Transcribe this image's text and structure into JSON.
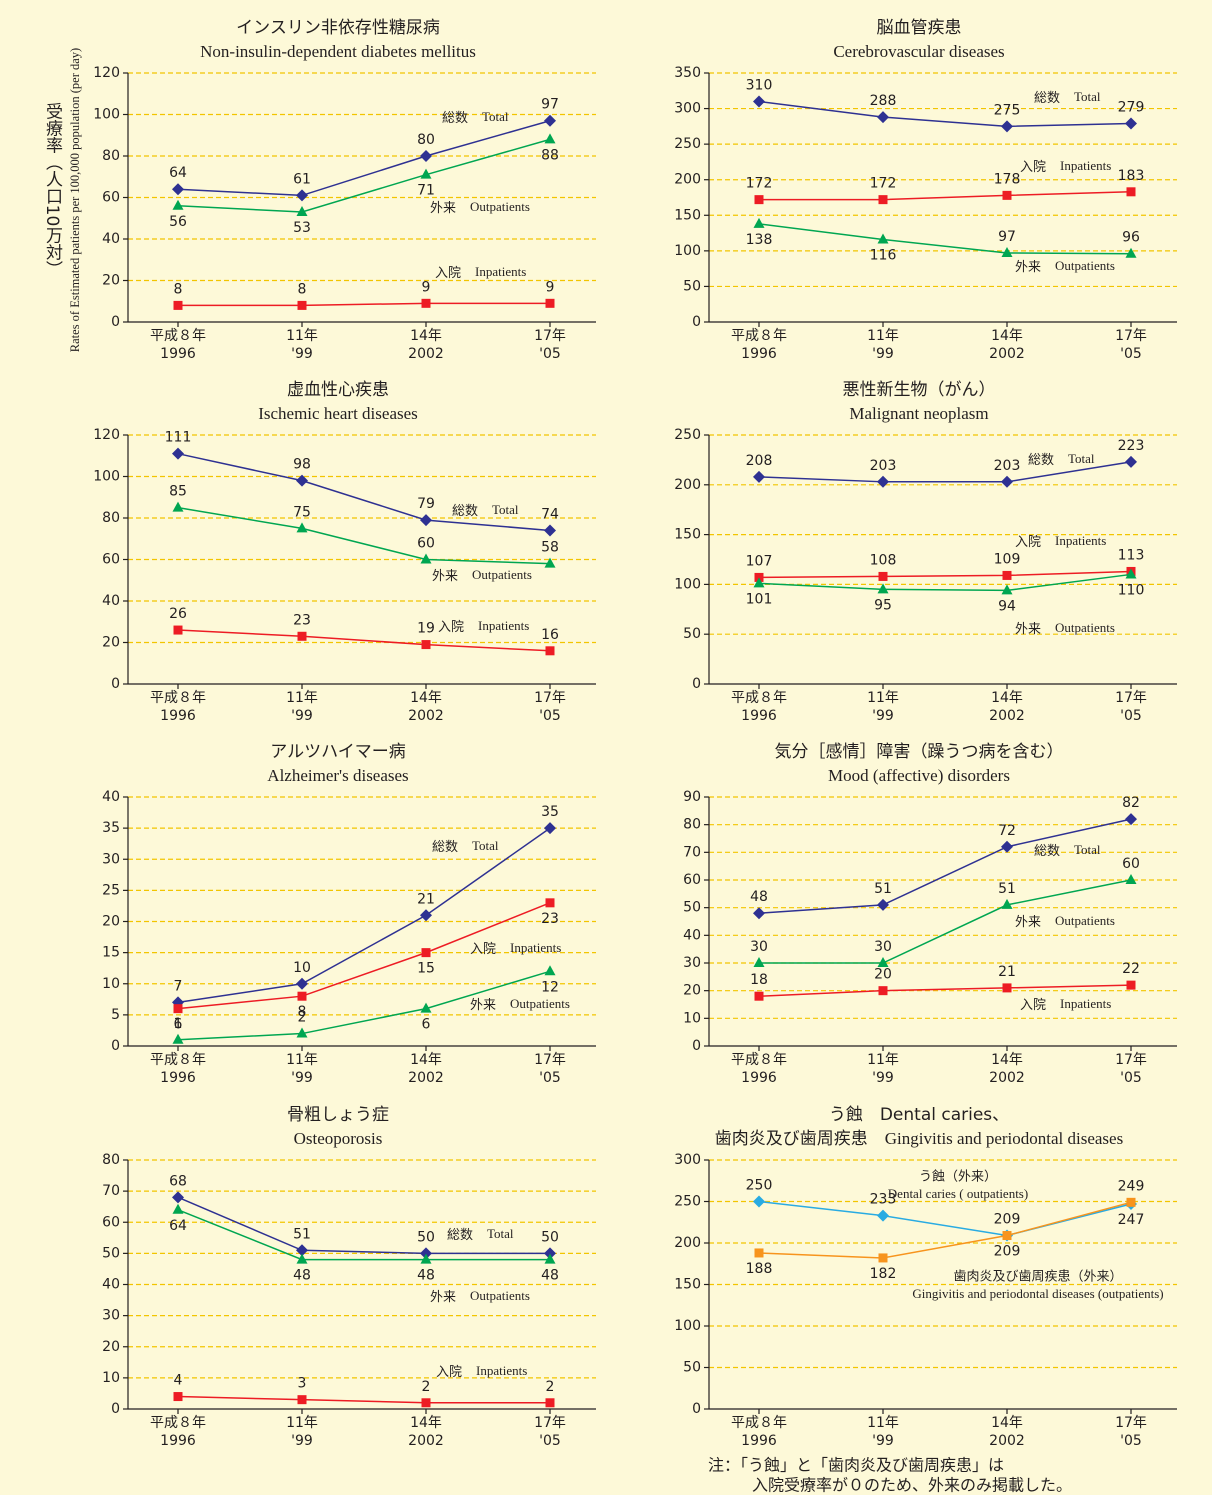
{
  "y_axis_title": "受療率（人口10万対）",
  "y_axis_title_en": "Rates of Estimated patients per 100,000 population (per day)",
  "note": [
    "注：「う蝕」と「歯肉炎及び歯周疾患」は",
    "入院受療率が０のため、外来のみ掲載した。"
  ],
  "chart_data": [
    {
      "type": "line",
      "title": "インスリン非依存性糖尿病",
      "subtitle": "Non-insulin-dependent diabetes mellitus",
      "categories": [
        "平成８年",
        "11年",
        "14年",
        "17年"
      ],
      "categories_en": [
        "1996",
        "'99",
        "2002",
        "'05"
      ],
      "ylim": [
        0,
        120
      ],
      "yticks": [
        0,
        20,
        40,
        60,
        80,
        100,
        120
      ],
      "grid": true,
      "series": [
        {
          "name": "総数",
          "name_en": "Total",
          "color": "#2e3192",
          "marker": "diamond",
          "values": [
            64,
            61,
            80,
            97
          ]
        },
        {
          "name": "外来",
          "name_en": "Outpatients",
          "color": "#00a651",
          "marker": "triangle",
          "values": [
            56,
            53,
            71,
            88
          ]
        },
        {
          "name": "入院",
          "name_en": "Inpatients",
          "color": "#ed1c24",
          "marker": "square",
          "values": [
            8,
            8,
            9,
            9
          ]
        }
      ]
    },
    {
      "type": "line",
      "title": "脳血管疾患",
      "subtitle": "Cerebrovascular diseases",
      "categories": [
        "平成８年",
        "11年",
        "14年",
        "17年"
      ],
      "categories_en": [
        "1996",
        "'99",
        "2002",
        "'05"
      ],
      "ylim": [
        0,
        350
      ],
      "yticks": [
        0,
        50,
        100,
        150,
        200,
        250,
        300,
        350
      ],
      "grid": true,
      "series": [
        {
          "name": "総数",
          "name_en": "Total",
          "color": "#2e3192",
          "marker": "diamond",
          "values": [
            310,
            288,
            275,
            279
          ]
        },
        {
          "name": "入院",
          "name_en": "Inpatients",
          "color": "#ed1c24",
          "marker": "square",
          "values": [
            172,
            172,
            178,
            183
          ]
        },
        {
          "name": "外来",
          "name_en": "Outpatients",
          "color": "#00a651",
          "marker": "triangle",
          "values": [
            138,
            116,
            97,
            96
          ]
        }
      ]
    },
    {
      "type": "line",
      "title": "虚血性心疾患",
      "subtitle": "Ischemic heart diseases",
      "categories": [
        "平成８年",
        "11年",
        "14年",
        "17年"
      ],
      "categories_en": [
        "1996",
        "'99",
        "2002",
        "'05"
      ],
      "ylim": [
        0,
        120
      ],
      "yticks": [
        0,
        20,
        40,
        60,
        80,
        100,
        120
      ],
      "grid": true,
      "series": [
        {
          "name": "総数",
          "name_en": "Total",
          "color": "#2e3192",
          "marker": "diamond",
          "values": [
            111,
            98,
            79,
            74
          ]
        },
        {
          "name": "外来",
          "name_en": "Outpatients",
          "color": "#00a651",
          "marker": "triangle",
          "values": [
            85,
            75,
            60,
            58
          ]
        },
        {
          "name": "入院",
          "name_en": "Inpatients",
          "color": "#ed1c24",
          "marker": "square",
          "values": [
            26,
            23,
            19,
            16
          ]
        }
      ]
    },
    {
      "type": "line",
      "title": "悪性新生物（がん）",
      "subtitle": "Malignant neoplasm",
      "categories": [
        "平成８年",
        "11年",
        "14年",
        "17年"
      ],
      "categories_en": [
        "1996",
        "'99",
        "2002",
        "'05"
      ],
      "ylim": [
        0,
        250
      ],
      "yticks": [
        0,
        50,
        100,
        150,
        200,
        250
      ],
      "grid": true,
      "series": [
        {
          "name": "総数",
          "name_en": "Total",
          "color": "#2e3192",
          "marker": "diamond",
          "values": [
            208,
            203,
            203,
            223
          ]
        },
        {
          "name": "入院",
          "name_en": "Inpatients",
          "color": "#ed1c24",
          "marker": "square",
          "values": [
            107,
            108,
            109,
            113
          ]
        },
        {
          "name": "外来",
          "name_en": "Outpatients",
          "color": "#00a651",
          "marker": "triangle",
          "values": [
            101,
            95,
            94,
            110
          ]
        }
      ]
    },
    {
      "type": "line",
      "title": "アルツハイマー病",
      "subtitle": "Alzheimer's diseases",
      "categories": [
        "平成８年",
        "11年",
        "14年",
        "17年"
      ],
      "categories_en": [
        "1996",
        "'99",
        "2002",
        "'05"
      ],
      "ylim": [
        0,
        40
      ],
      "yticks": [
        0,
        5,
        10,
        15,
        20,
        25,
        30,
        35,
        40
      ],
      "grid": true,
      "series": [
        {
          "name": "総数",
          "name_en": "Total",
          "color": "#2e3192",
          "marker": "diamond",
          "values": [
            7,
            10,
            21,
            35
          ]
        },
        {
          "name": "入院",
          "name_en": "Inpatients",
          "color": "#ed1c24",
          "marker": "square",
          "values": [
            6,
            8,
            15,
            23
          ]
        },
        {
          "name": "外来",
          "name_en": "Outpatients",
          "color": "#00a651",
          "marker": "triangle",
          "values": [
            1,
            2,
            6,
            12
          ]
        }
      ]
    },
    {
      "type": "line",
      "title": "気分［感情］障害（躁うつ病を含む）",
      "subtitle": "Mood (affective) disorders",
      "categories": [
        "平成８年",
        "11年",
        "14年",
        "17年"
      ],
      "categories_en": [
        "1996",
        "'99",
        "2002",
        "'05"
      ],
      "ylim": [
        0,
        90
      ],
      "yticks": [
        0,
        10,
        20,
        30,
        40,
        50,
        60,
        70,
        80,
        90
      ],
      "grid": true,
      "series": [
        {
          "name": "総数",
          "name_en": "Total",
          "color": "#2e3192",
          "marker": "diamond",
          "values": [
            48,
            51,
            72,
            82
          ]
        },
        {
          "name": "外来",
          "name_en": "Outpatients",
          "color": "#00a651",
          "marker": "triangle",
          "values": [
            30,
            30,
            51,
            60
          ]
        },
        {
          "name": "入院",
          "name_en": "Inpatients",
          "color": "#ed1c24",
          "marker": "square",
          "values": [
            18,
            20,
            21,
            22
          ]
        }
      ]
    },
    {
      "type": "line",
      "title": "骨粗しょう症",
      "subtitle": "Osteoporosis",
      "categories": [
        "平成８年",
        "11年",
        "14年",
        "17年"
      ],
      "categories_en": [
        "1996",
        "'99",
        "2002",
        "'05"
      ],
      "ylim": [
        0,
        80
      ],
      "yticks": [
        0,
        10,
        20,
        30,
        40,
        50,
        60,
        70,
        80
      ],
      "grid": true,
      "series": [
        {
          "name": "総数",
          "name_en": "Total",
          "color": "#2e3192",
          "marker": "diamond",
          "values": [
            68,
            51,
            50,
            50
          ]
        },
        {
          "name": "外来",
          "name_en": "Outpatients",
          "color": "#00a651",
          "marker": "triangle",
          "values": [
            64,
            48,
            48,
            48
          ]
        },
        {
          "name": "入院",
          "name_en": "Inpatients",
          "color": "#ed1c24",
          "marker": "square",
          "values": [
            4,
            3,
            2,
            2
          ]
        }
      ]
    },
    {
      "type": "line",
      "title": "う蝕　Dental caries、",
      "subtitle": "歯肉炎及び歯周疾患　Gingivitis and periodontal diseases",
      "categories": [
        "平成８年",
        "11年",
        "14年",
        "17年"
      ],
      "categories_en": [
        "1996",
        "'99",
        "2002",
        "'05"
      ],
      "ylim": [
        0,
        300
      ],
      "yticks": [
        0,
        50,
        100,
        150,
        200,
        250,
        300
      ],
      "grid": true,
      "series": [
        {
          "name": "う蝕（外来）",
          "name_en": "Dental caries ( outpatients)",
          "color": "#29abe2",
          "marker": "diamond",
          "values": [
            250,
            233,
            209,
            247
          ]
        },
        {
          "name": "歯肉炎及び歯周疾患（外来）",
          "name_en": "Gingivitis and periodontal diseases (outpatients)",
          "color": "#f7941d",
          "marker": "square",
          "values": [
            188,
            182,
            209,
            249
          ]
        }
      ]
    }
  ]
}
